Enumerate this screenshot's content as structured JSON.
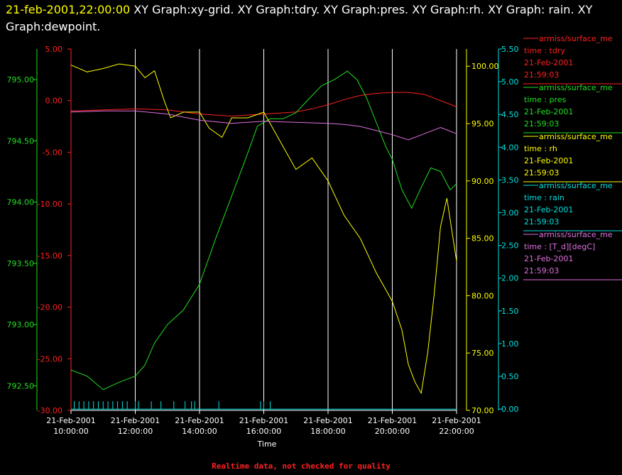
{
  "header": {
    "timestamp": "21-feb-2001,22:00:00",
    "graphs_text": " XY Graph:xy-grid.  XY Graph:tdry.  XY Graph:pres.  XY Graph:rh.  XY Graph: rain.  XY Graph:dewpoint."
  },
  "footer": {
    "note": "Realtime data, not checked for quality"
  },
  "colors": {
    "tdry": "#ff2020",
    "pres": "#20e020",
    "rh": "#ffff00",
    "rain": "#00e0e0",
    "dewpoint": "#e070e0",
    "grid": "#ffffff"
  },
  "legend": [
    {
      "source": "armiss/surface_me",
      "desc": "time : tdry",
      "date": "21-Feb-2001",
      "time": "21:59:03",
      "color": "#ff2020"
    },
    {
      "source": "armiss/surface_me",
      "desc": "time : pres",
      "date": "21-Feb-2001",
      "time": "21:59:03",
      "color": "#20e020"
    },
    {
      "source": "armiss/surface_me",
      "desc": "time : rh",
      "date": "21-Feb-2001",
      "time": "21:59:03",
      "color": "#ffff00"
    },
    {
      "source": "armiss/surface_me",
      "desc": "time : rain",
      "date": "21-Feb-2001",
      "time": "21:59:03",
      "color": "#00e0e0"
    },
    {
      "source": "armiss/surface_me",
      "desc": "time : [T_d][degC]",
      "date": "21-Feb-2001",
      "time": "21:59:03",
      "color": "#e070e0"
    }
  ],
  "chart_data": {
    "type": "line",
    "xlabel": "Time",
    "x_ticks": [
      {
        "date": "21-Feb-2001",
        "time": "10:00:00",
        "hour": 10
      },
      {
        "date": "21-Feb-2001",
        "time": "12:00:00",
        "hour": 12
      },
      {
        "date": "21-Feb-2001",
        "time": "14:00:00",
        "hour": 14
      },
      {
        "date": "21-Feb-2001",
        "time": "16:00:00",
        "hour": 16
      },
      {
        "date": "21-Feb-2001",
        "time": "18:00:00",
        "hour": 18
      },
      {
        "date": "21-Feb-2001",
        "time": "20:00:00",
        "hour": 20
      },
      {
        "date": "21-Feb-2001",
        "time": "22:00:00",
        "hour": 22
      }
    ],
    "xlim_hours": [
      10,
      22
    ],
    "grid": true,
    "axes": {
      "pres": {
        "ylim": [
          792.3,
          795.25
        ],
        "ticks": [
          "795.00",
          "794.50",
          "794.00",
          "793.50",
          "793.00",
          "792.50"
        ],
        "values": [
          795.0,
          794.5,
          794.0,
          793.5,
          793.0,
          792.5
        ]
      },
      "tdry": {
        "ylim": [
          -30,
          5
        ],
        "ticks": [
          "5.00",
          "0.00",
          "-5.00",
          "-10.00",
          "-15.00",
          "-20.00",
          "-25.00",
          "-30.00"
        ],
        "values": [
          5,
          0,
          -5,
          -10,
          -15,
          -20,
          -25,
          -30
        ]
      },
      "rh": {
        "ylim": [
          70,
          101.5
        ],
        "ticks": [
          "100.00",
          "95.00",
          "90.00",
          "85.00",
          "80.00",
          "75.00",
          "70.00"
        ],
        "values": [
          100,
          95,
          90,
          85,
          80,
          75,
          70
        ]
      },
      "rain": {
        "ylim": [
          -0.02,
          5.5
        ],
        "ticks": [
          "5.50",
          "5.00",
          "4.50",
          "4.00",
          "3.50",
          "3.00",
          "2.50",
          "2.00",
          "1.50",
          "1.00",
          "0.50",
          "0.00"
        ],
        "values": [
          5.5,
          5.0,
          4.5,
          4.0,
          3.5,
          3.0,
          2.5,
          2.0,
          1.5,
          1.0,
          0.5,
          0.0
        ]
      }
    },
    "series": [
      {
        "key": "tdry",
        "axis": "tdry",
        "x": [
          10,
          11,
          12,
          13,
          14,
          15,
          16,
          17,
          17.5,
          18,
          18.5,
          19,
          19.5,
          20,
          20.5,
          21,
          21.5,
          22
        ],
        "y": [
          -1.0,
          -0.9,
          -0.8,
          -0.9,
          -1.3,
          -1.5,
          -1.3,
          -1.1,
          -0.8,
          -0.4,
          0.1,
          0.5,
          0.7,
          0.8,
          0.8,
          0.6,
          0.0,
          -0.6
        ]
      },
      {
        "key": "pres",
        "axis": "pres",
        "x": [
          10,
          10.5,
          11,
          11.5,
          12,
          12.3,
          12.6,
          13,
          13.5,
          14,
          14.5,
          15,
          15.5,
          15.8,
          16.2,
          16.6,
          17,
          17.5,
          17.8,
          18.2,
          18.6,
          18.9,
          19.2,
          19.5,
          19.8,
          20,
          20.3,
          20.6,
          20.9,
          21.2,
          21.5,
          21.8,
          22
        ],
        "y": [
          792.63,
          792.58,
          792.47,
          792.53,
          792.58,
          792.67,
          792.85,
          793.0,
          793.12,
          793.33,
          793.7,
          794.05,
          794.4,
          794.62,
          794.68,
          794.68,
          794.73,
          794.87,
          794.95,
          795.0,
          795.07,
          795.0,
          794.85,
          794.65,
          794.45,
          794.35,
          794.1,
          793.95,
          794.12,
          794.28,
          794.25,
          794.1,
          794.15
        ]
      },
      {
        "key": "rh",
        "axis": "rh",
        "x": [
          10,
          10.5,
          11,
          11.5,
          12,
          12.3,
          12.6,
          12.9,
          13.1,
          13.5,
          14,
          14.3,
          14.7,
          15,
          15.5,
          16,
          16.5,
          17,
          17.5,
          18,
          18.5,
          19,
          19.5,
          19.8,
          20,
          20.3,
          20.5,
          20.7,
          20.9,
          21.1,
          21.3,
          21.5,
          21.7,
          22
        ],
        "y": [
          100.1,
          99.5,
          99.8,
          100.2,
          100.0,
          99.0,
          99.6,
          97.0,
          95.5,
          96.0,
          96.0,
          94.6,
          93.8,
          95.5,
          95.5,
          96.0,
          93.5,
          91.0,
          92.0,
          90.0,
          87.0,
          85.0,
          82.0,
          80.5,
          79.5,
          77.0,
          74.0,
          72.5,
          71.5,
          75.0,
          80.0,
          86.0,
          88.5,
          83.0
        ]
      },
      {
        "key": "dewpoint",
        "axis": "tdry",
        "x": [
          10,
          11,
          12,
          13,
          14,
          15,
          16,
          17,
          18,
          18.5,
          19,
          19.5,
          20,
          20.5,
          21,
          21.5,
          22
        ],
        "y": [
          -1.1,
          -1.0,
          -1.0,
          -1.3,
          -1.9,
          -2.2,
          -2.0,
          -2.1,
          -2.2,
          -2.3,
          -2.5,
          -2.9,
          -3.3,
          -3.8,
          -3.2,
          -2.6,
          -3.2
        ]
      },
      {
        "key": "rain",
        "axis": "rain",
        "x": [
          10,
          22
        ],
        "y": [
          0.0,
          0.0
        ]
      }
    ],
    "rain_spike_hours": [
      10.1,
      10.25,
      10.4,
      10.55,
      10.7,
      10.85,
      11.0,
      11.15,
      11.3,
      11.45,
      11.6,
      11.75,
      12.0,
      12.1,
      12.5,
      12.8,
      13.2,
      13.55,
      13.75,
      13.85,
      14.6,
      15.9,
      16.0,
      16.2
    ],
    "rain_spike_value": 0.12
  }
}
